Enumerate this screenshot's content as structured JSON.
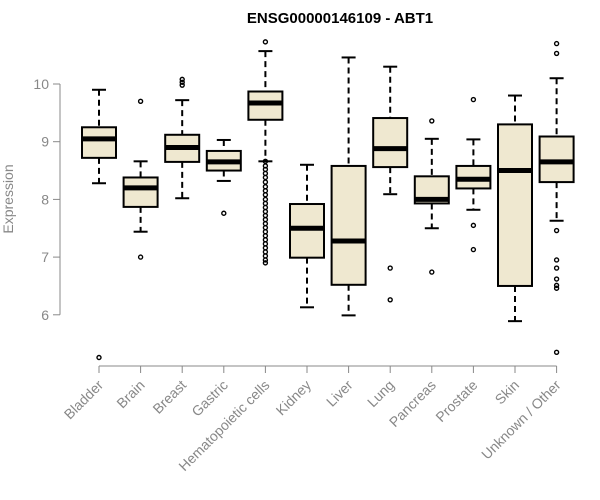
{
  "chart_data": {
    "type": "boxplot",
    "title": "ENSG00000146109 - ABT1",
    "xlabel": "",
    "ylabel": "Expression",
    "ylim": [
      5.05,
      10.7
    ],
    "yticks": [
      6,
      7,
      8,
      9,
      10
    ],
    "box_fill": "#efe8d0",
    "categories": [
      "Bladder",
      "Brain",
      "Breast",
      "Gastric",
      "Hematopoietic cells",
      "Kidney",
      "Liver",
      "Lung",
      "Pancreas",
      "Prostate",
      "Skin",
      "Unknown / Other"
    ],
    "boxes": [
      {
        "name": "Bladder",
        "whisker_low": 8.28,
        "q1": 8.72,
        "median": 9.05,
        "q3": 9.25,
        "whisker_high": 9.9,
        "outliers": [
          5.26
        ]
      },
      {
        "name": "Brain",
        "whisker_low": 7.44,
        "q1": 7.87,
        "median": 8.2,
        "q3": 8.38,
        "whisker_high": 8.66,
        "outliers": [
          9.7,
          7.0
        ]
      },
      {
        "name": "Breast",
        "whisker_low": 8.02,
        "q1": 8.65,
        "median": 8.9,
        "q3": 9.12,
        "whisker_high": 9.72,
        "outliers": [
          10.08,
          10.03,
          9.98
        ]
      },
      {
        "name": "Gastric",
        "whisker_low": 8.32,
        "q1": 8.5,
        "median": 8.65,
        "q3": 8.84,
        "whisker_high": 9.03,
        "outliers": [
          7.76
        ]
      },
      {
        "name": "Hematopoietic cells",
        "whisker_low": 8.66,
        "q1": 9.38,
        "median": 9.67,
        "q3": 9.87,
        "whisker_high": 10.57,
        "outliers": [
          10.73,
          8.66,
          8.58,
          8.52,
          8.45,
          8.38,
          8.3,
          8.22,
          8.15,
          8.08,
          8.0,
          7.93,
          7.86,
          7.79,
          7.72,
          7.65,
          7.58,
          7.51,
          7.44,
          7.37,
          7.3,
          7.23,
          7.16,
          7.09,
          7.02,
          6.95,
          6.9
        ]
      },
      {
        "name": "Kidney",
        "whisker_low": 6.13,
        "q1": 6.99,
        "median": 7.5,
        "q3": 7.92,
        "whisker_high": 8.6,
        "outliers": []
      },
      {
        "name": "Liver",
        "whisker_low": 5.99,
        "q1": 6.52,
        "median": 7.28,
        "q3": 8.58,
        "whisker_high": 10.46,
        "outliers": []
      },
      {
        "name": "Lung",
        "whisker_low": 8.09,
        "q1": 8.56,
        "median": 8.88,
        "q3": 9.41,
        "whisker_high": 10.3,
        "outliers": [
          6.81,
          6.26
        ]
      },
      {
        "name": "Pancreas",
        "whisker_low": 7.5,
        "q1": 7.93,
        "median": 8.0,
        "q3": 8.4,
        "whisker_high": 9.05,
        "outliers": [
          9.36,
          6.74
        ]
      },
      {
        "name": "Prostate",
        "whisker_low": 7.82,
        "q1": 8.19,
        "median": 8.35,
        "q3": 8.58,
        "whisker_high": 9.04,
        "outliers": [
          9.73,
          7.55,
          7.13
        ]
      },
      {
        "name": "Skin",
        "whisker_low": 5.89,
        "q1": 6.5,
        "median": 8.5,
        "q3": 9.3,
        "whisker_high": 9.8,
        "outliers": []
      },
      {
        "name": "Unknown / Other",
        "whisker_low": 7.63,
        "q1": 8.3,
        "median": 8.65,
        "q3": 9.09,
        "whisker_high": 10.1,
        "outliers": [
          10.7,
          10.53,
          7.46,
          6.95,
          6.81,
          6.62,
          6.51,
          6.46,
          5.35
        ]
      }
    ]
  }
}
